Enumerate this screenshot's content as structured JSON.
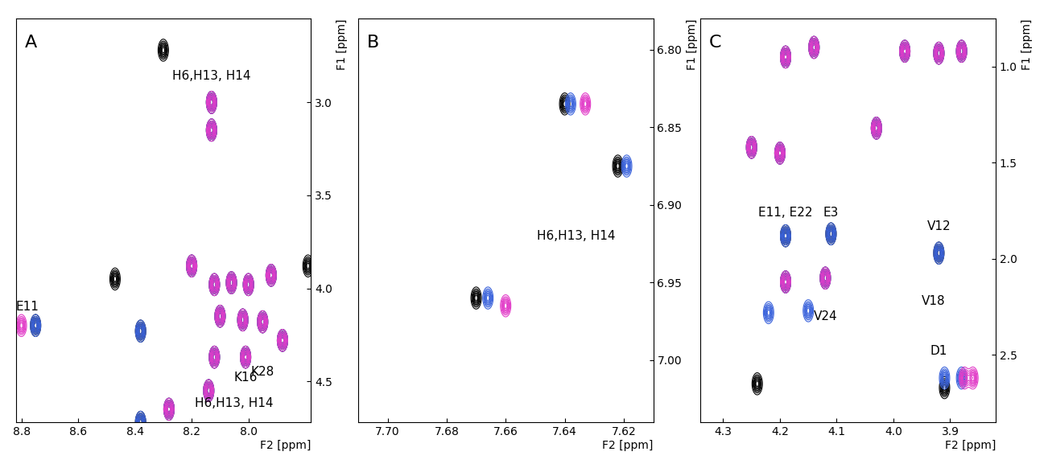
{
  "chart_data": [
    {
      "type": "contour",
      "title": "A",
      "x_label": "F2 [ppm]",
      "y_label": "F1 [ppm]",
      "xlim": [
        8.82,
        7.78
      ],
      "ylim": [
        4.72,
        2.55
      ],
      "xticks": [
        8.8,
        8.6,
        8.4,
        8.2,
        8.0
      ],
      "yticks": [
        3.0,
        3.5,
        4.0,
        4.5
      ],
      "series": [
        {
          "color": "#000000",
          "peaks": [
            [
              8.3,
              2.72
            ],
            [
              8.13,
              3.0
            ],
            [
              8.13,
              3.15
            ],
            [
              8.2,
              3.88
            ],
            [
              8.47,
              3.95
            ],
            [
              8.12,
              3.98
            ],
            [
              8.06,
              3.97
            ],
            [
              8.0,
              3.98
            ],
            [
              8.1,
              4.15
            ],
            [
              8.02,
              4.17
            ],
            [
              7.95,
              4.18
            ],
            [
              7.92,
              3.93
            ],
            [
              7.88,
              4.28
            ],
            [
              8.75,
              4.2
            ],
            [
              8.38,
              4.23
            ],
            [
              8.12,
              4.37
            ],
            [
              8.01,
              4.37
            ],
            [
              8.14,
              4.55
            ],
            [
              8.28,
              4.65
            ],
            [
              8.38,
              4.72
            ],
            [
              7.79,
              3.88
            ]
          ]
        },
        {
          "color": "#3c64dc",
          "peaks": [
            [
              8.13,
              3.0
            ],
            [
              8.13,
              3.15
            ],
            [
              8.2,
              3.88
            ],
            [
              8.12,
              3.98
            ],
            [
              8.06,
              3.97
            ],
            [
              8.0,
              3.98
            ],
            [
              8.1,
              4.15
            ],
            [
              8.02,
              4.17
            ],
            [
              7.95,
              4.18
            ],
            [
              7.92,
              3.93
            ],
            [
              7.88,
              4.28
            ],
            [
              8.75,
              4.2
            ],
            [
              8.38,
              4.23
            ],
            [
              8.12,
              4.37
            ],
            [
              8.01,
              4.37
            ],
            [
              8.14,
              4.55
            ],
            [
              8.28,
              4.65
            ],
            [
              8.38,
              4.72
            ]
          ]
        },
        {
          "color": "#e23cc8",
          "peaks": [
            [
              8.13,
              3.0
            ],
            [
              8.13,
              3.15
            ],
            [
              8.2,
              3.88
            ],
            [
              8.12,
              3.98
            ],
            [
              8.06,
              3.97
            ],
            [
              8.0,
              3.98
            ],
            [
              8.1,
              4.15
            ],
            [
              8.02,
              4.17
            ],
            [
              7.95,
              4.18
            ],
            [
              7.92,
              3.93
            ],
            [
              7.88,
              4.28
            ],
            [
              8.8,
              4.2
            ],
            [
              8.12,
              4.37
            ],
            [
              8.01,
              4.37
            ],
            [
              8.14,
              4.55
            ],
            [
              8.28,
              4.65
            ]
          ]
        }
      ],
      "annotations": [
        {
          "text": "H6,H13, H14",
          "x": 8.13,
          "y": 2.86
        },
        {
          "text": "E11",
          "x": 8.78,
          "y": 4.1
        },
        {
          "text": "K28",
          "x": 7.95,
          "y": 4.45
        },
        {
          "text": "K16",
          "x": 8.01,
          "y": 4.48
        },
        {
          "text": "H6,H13, H14",
          "x": 8.05,
          "y": 4.62
        }
      ]
    },
    {
      "type": "contour",
      "title": "B",
      "x_label": "F2 [ppm]",
      "y_label": "F1 [ppm]",
      "xlim": [
        7.71,
        7.61
      ],
      "ylim": [
        7.04,
        6.78
      ],
      "xticks": [
        {
          "value": 7.7,
          "label": "7.70"
        },
        {
          "value": 7.68,
          "label": "7.68"
        },
        {
          "value": 7.66,
          "label": "7.66"
        },
        {
          "value": 7.64,
          "label": "7.64"
        },
        {
          "value": 7.62,
          "label": "7.62"
        }
      ],
      "yticks": [
        {
          "value": 6.8,
          "label": "6.80"
        },
        {
          "value": 6.85,
          "label": "6.85"
        },
        {
          "value": 6.9,
          "label": "6.90"
        },
        {
          "value": 6.95,
          "label": "6.95"
        },
        {
          "value": 7.0,
          "label": "7.00"
        }
      ],
      "series": [
        {
          "color": "#000000",
          "peaks": [
            [
              7.67,
              6.96
            ],
            [
              7.64,
              6.835
            ],
            [
              7.622,
              6.875
            ]
          ]
        },
        {
          "color": "#3c64dc",
          "peaks": [
            [
              7.666,
              6.96
            ],
            [
              7.638,
              6.835
            ],
            [
              7.619,
              6.875
            ]
          ]
        },
        {
          "color": "#e23cc8",
          "peaks": [
            [
              7.66,
              6.965
            ],
            [
              7.633,
              6.835
            ]
          ]
        }
      ],
      "annotations": [
        {
          "text": "H6,H13, H14",
          "x": 7.636,
          "y": 6.92
        }
      ]
    },
    {
      "type": "contour",
      "title": "C",
      "x_label": "F2 [ppm]",
      "y_label": "F1 [ppm]",
      "xlim": [
        4.34,
        3.82
      ],
      "ylim": [
        2.85,
        0.75
      ],
      "xticks": [
        4.3,
        4.2,
        4.1,
        4.0,
        3.9
      ],
      "yticks": [
        1.0,
        1.5,
        2.0,
        2.5
      ],
      "series": [
        {
          "color": "#000000",
          "peaks": [
            [
              4.19,
              0.95
            ],
            [
              4.14,
              0.9
            ],
            [
              3.98,
              0.92
            ],
            [
              3.92,
              0.93
            ],
            [
              3.88,
              0.92
            ],
            [
              4.25,
              1.42
            ],
            [
              4.2,
              1.45
            ],
            [
              4.03,
              1.32
            ],
            [
              4.19,
              1.88
            ],
            [
              4.11,
              1.87
            ],
            [
              3.92,
              1.97
            ],
            [
              4.19,
              2.12
            ],
            [
              4.12,
              2.1
            ],
            [
              4.24,
              2.65
            ],
            [
              3.91,
              2.67
            ]
          ]
        },
        {
          "color": "#3c64dc",
          "peaks": [
            [
              4.19,
              0.95
            ],
            [
              4.14,
              0.9
            ],
            [
              3.98,
              0.92
            ],
            [
              3.92,
              0.93
            ],
            [
              3.88,
              0.92
            ],
            [
              4.25,
              1.42
            ],
            [
              4.2,
              1.45
            ],
            [
              4.03,
              1.32
            ],
            [
              4.19,
              1.88
            ],
            [
              4.11,
              1.87
            ],
            [
              3.92,
              1.97
            ],
            [
              4.19,
              2.12
            ],
            [
              4.12,
              2.1
            ],
            [
              4.22,
              2.28
            ],
            [
              4.15,
              2.27
            ],
            [
              3.91,
              2.62
            ],
            [
              3.88,
              2.62
            ]
          ]
        },
        {
          "color": "#e23cc8",
          "peaks": [
            [
              4.19,
              0.95
            ],
            [
              4.14,
              0.9
            ],
            [
              3.98,
              0.92
            ],
            [
              3.92,
              0.93
            ],
            [
              3.88,
              0.92
            ],
            [
              4.25,
              1.42
            ],
            [
              4.2,
              1.45
            ],
            [
              4.03,
              1.32
            ],
            [
              4.19,
              2.12
            ],
            [
              4.12,
              2.1
            ],
            [
              3.875,
              2.62
            ],
            [
              3.86,
              2.62
            ]
          ]
        }
      ],
      "annotations": [
        {
          "text": "E11, E22",
          "x": 4.19,
          "y": 1.76
        },
        {
          "text": "E3",
          "x": 4.11,
          "y": 1.76
        },
        {
          "text": "V12",
          "x": 3.92,
          "y": 1.83
        },
        {
          "text": "V18",
          "x": 3.93,
          "y": 2.22
        },
        {
          "text": "V24",
          "x": 4.12,
          "y": 2.3
        },
        {
          "text": "D1",
          "x": 3.92,
          "y": 2.48
        }
      ]
    }
  ]
}
